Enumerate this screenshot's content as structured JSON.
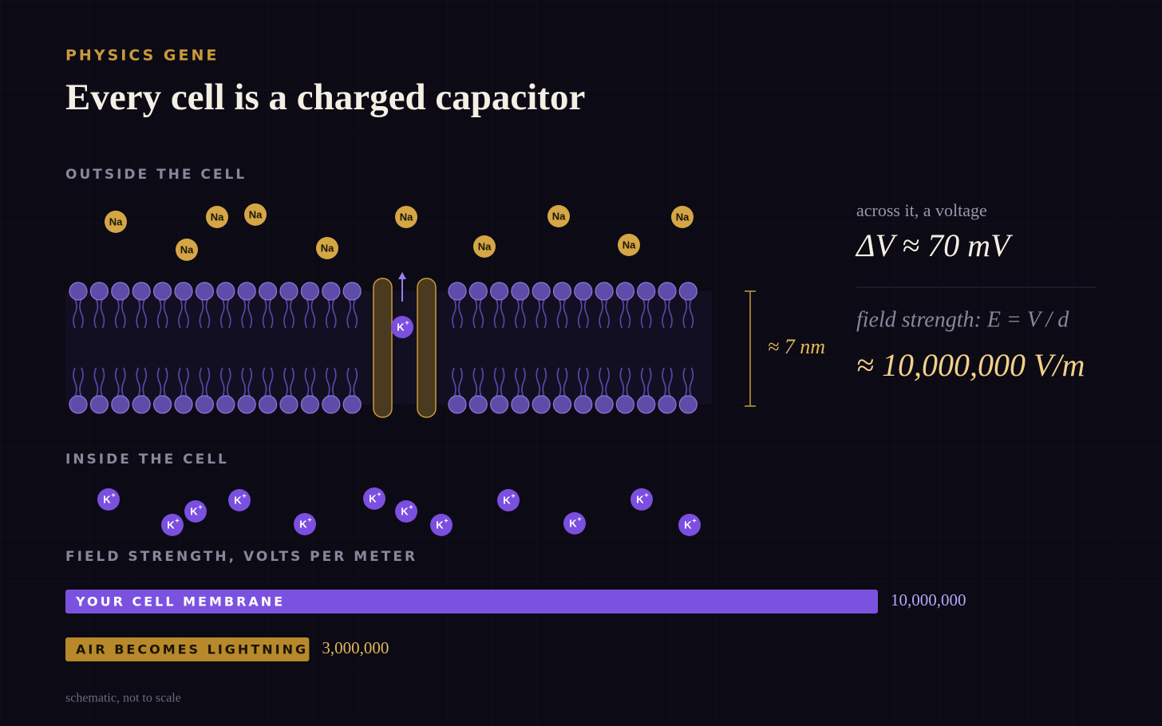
{
  "header": {
    "kicker": "PHYSICS GENE",
    "title": "Every cell is a charged capacitor"
  },
  "membrane": {
    "outside_label": "OUTSIDE THE CELL",
    "inside_label": "INSIDE THE CELL",
    "sodium": "Na",
    "potassium": {
      "symbol": "K",
      "charge": "+"
    },
    "thickness": "≈ 7 nm"
  },
  "readout": {
    "voltage_caption": "across it, a voltage",
    "voltage": "ΔV ≈ 70 mV",
    "field_caption": "field strength: E = V / d",
    "field": "≈ 10,000,000 V/m"
  },
  "comparison": {
    "title": "FIELD STRENGTH, VOLTS PER METER",
    "bars": [
      {
        "name": "YOUR CELL MEMBRANE",
        "value": 10000000,
        "value_label": "10,000,000",
        "color": "#7b52e0"
      },
      {
        "name": "AIR BECOMES LIGHTNING",
        "value": 3000000,
        "value_label": "3,000,000",
        "color": "#b8892a"
      }
    ]
  },
  "footnote": "schematic, not to scale"
}
